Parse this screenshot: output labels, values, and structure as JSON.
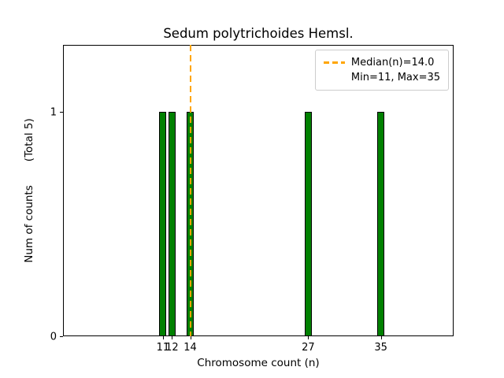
{
  "chart_data": {
    "type": "bar",
    "title": "Sedum polytrichoides Hemsl.",
    "xlabel": "Chromosome count (n)",
    "ylabel": "Num of counts       (Total 5)",
    "x": [
      11,
      12,
      14,
      27,
      35
    ],
    "values": [
      1,
      1,
      1,
      1,
      1
    ],
    "total_counts": 5,
    "bar_width": 0.8,
    "bar_color": "#008000",
    "bar_edge_color": "#000000",
    "xlim": [
      0,
      43
    ],
    "ylim": [
      0,
      1.3
    ],
    "xticks": [
      11,
      12,
      14,
      27,
      35
    ],
    "yticks": [
      0,
      1
    ],
    "grid": false,
    "median_line": {
      "x": 14,
      "color": "#ffa500",
      "style": "dashed",
      "width": 2
    },
    "legend_position": "upper right",
    "legend": {
      "line1": "Median(n)=14.0",
      "line2": "Min=11, Max=35",
      "swatch_color": "#ffa500"
    }
  }
}
